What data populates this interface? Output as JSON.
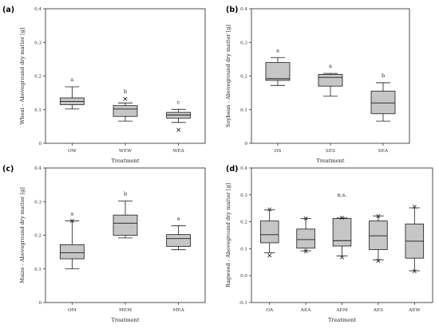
{
  "colors": {
    "box_fill": "#c6c6c6",
    "stroke": "#1a1a1a",
    "frame": "#222222",
    "background": "#ffffff"
  },
  "chart_data": [
    {
      "type": "box",
      "panel": "(a)",
      "xlabel": "Treatment",
      "ylabel": "Wheat - Aboveground dry matter [g]",
      "ylim": [
        0,
        0.4
      ],
      "yticks": [
        "0",
        "0.1",
        "0.2",
        "0.3",
        "0.4"
      ],
      "categories": [
        "OW",
        "WEW",
        "WEA"
      ],
      "boxes": [
        {
          "whisker_low": 0.102,
          "q1": 0.115,
          "median": 0.124,
          "q3": 0.135,
          "whisker_high": 0.168,
          "outliers": []
        },
        {
          "whisker_low": 0.066,
          "q1": 0.08,
          "median": 0.102,
          "q3": 0.112,
          "whisker_high": 0.12,
          "outliers": [
            0.132
          ]
        },
        {
          "whisker_low": 0.062,
          "q1": 0.075,
          "median": 0.084,
          "q3": 0.092,
          "whisker_high": 0.101,
          "outliers": [
            0.04
          ]
        }
      ],
      "significance": [
        "a",
        "b",
        "c"
      ]
    },
    {
      "type": "box",
      "panel": "(b)",
      "xlabel": "Treatment",
      "ylabel": "Soybean - Aboveground dry matter [g]",
      "ylim": [
        0,
        0.4
      ],
      "yticks": [
        "0",
        "0.1",
        "0.2",
        "0.3",
        "0.4"
      ],
      "categories": [
        "OS",
        "SES",
        "SEA"
      ],
      "boxes": [
        {
          "whisker_low": 0.172,
          "q1": 0.187,
          "median": 0.192,
          "q3": 0.24,
          "whisker_high": 0.255,
          "outliers": []
        },
        {
          "whisker_low": 0.14,
          "q1": 0.17,
          "median": 0.196,
          "q3": 0.205,
          "whisker_high": 0.208,
          "outliers": []
        },
        {
          "whisker_low": 0.066,
          "q1": 0.088,
          "median": 0.12,
          "q3": 0.155,
          "whisker_high": 0.18,
          "outliers": []
        }
      ],
      "significance": [
        "a",
        "a",
        "b"
      ]
    },
    {
      "type": "box",
      "panel": "(c)",
      "xlabel": "Treatment",
      "ylabel": "Maize - Aboveground dry matter [g]",
      "ylim": [
        0,
        0.4
      ],
      "yticks": [
        "0",
        "0.1",
        "0.2",
        "0.3",
        "0.4"
      ],
      "categories": [
        "OM",
        "MEM",
        "MEA"
      ],
      "boxes": [
        {
          "whisker_low": 0.1,
          "q1": 0.13,
          "median": 0.148,
          "q3": 0.172,
          "whisker_high": 0.243,
          "outliers": [
            0.243
          ]
        },
        {
          "whisker_low": 0.192,
          "q1": 0.2,
          "median": 0.236,
          "q3": 0.26,
          "whisker_high": 0.302,
          "outliers": []
        },
        {
          "whisker_low": 0.157,
          "q1": 0.167,
          "median": 0.19,
          "q3": 0.202,
          "whisker_high": 0.228,
          "outliers": []
        }
      ],
      "significance": [
        "a",
        "b",
        "a"
      ]
    },
    {
      "type": "box",
      "panel": "(d)",
      "xlabel": "Treatment",
      "ylabel": "Ragweed - Aboveground dry matter [g]",
      "ylim": [
        -0.1,
        0.4
      ],
      "yticks": [
        "-0.1",
        "0.0",
        "0.1",
        "0.2",
        "0.3",
        "0.4"
      ],
      "categories": [
        "OA",
        "AEA",
        "AEM",
        "AES",
        "AEW"
      ],
      "boxes": [
        {
          "whisker_low": 0.085,
          "q1": 0.122,
          "median": 0.152,
          "q3": 0.203,
          "whisker_high": 0.244,
          "outliers": [
            0.075,
            0.246
          ]
        },
        {
          "whisker_low": 0.092,
          "q1": 0.102,
          "median": 0.134,
          "q3": 0.173,
          "whisker_high": 0.212,
          "outliers": [
            0.09,
            0.213
          ]
        },
        {
          "whisker_low": 0.073,
          "q1": 0.11,
          "median": 0.13,
          "q3": 0.212,
          "whisker_high": 0.214,
          "outliers": [
            0.068,
            0.215
          ]
        },
        {
          "whisker_low": 0.058,
          "q1": 0.097,
          "median": 0.148,
          "q3": 0.203,
          "whisker_high": 0.222,
          "outliers": [
            0.055,
            0.221
          ]
        },
        {
          "whisker_low": 0.018,
          "q1": 0.065,
          "median": 0.128,
          "q3": 0.192,
          "whisker_high": 0.252,
          "outliers": [
            0.016,
            0.256
          ]
        }
      ],
      "significance": [],
      "annotation": "n.s."
    }
  ]
}
